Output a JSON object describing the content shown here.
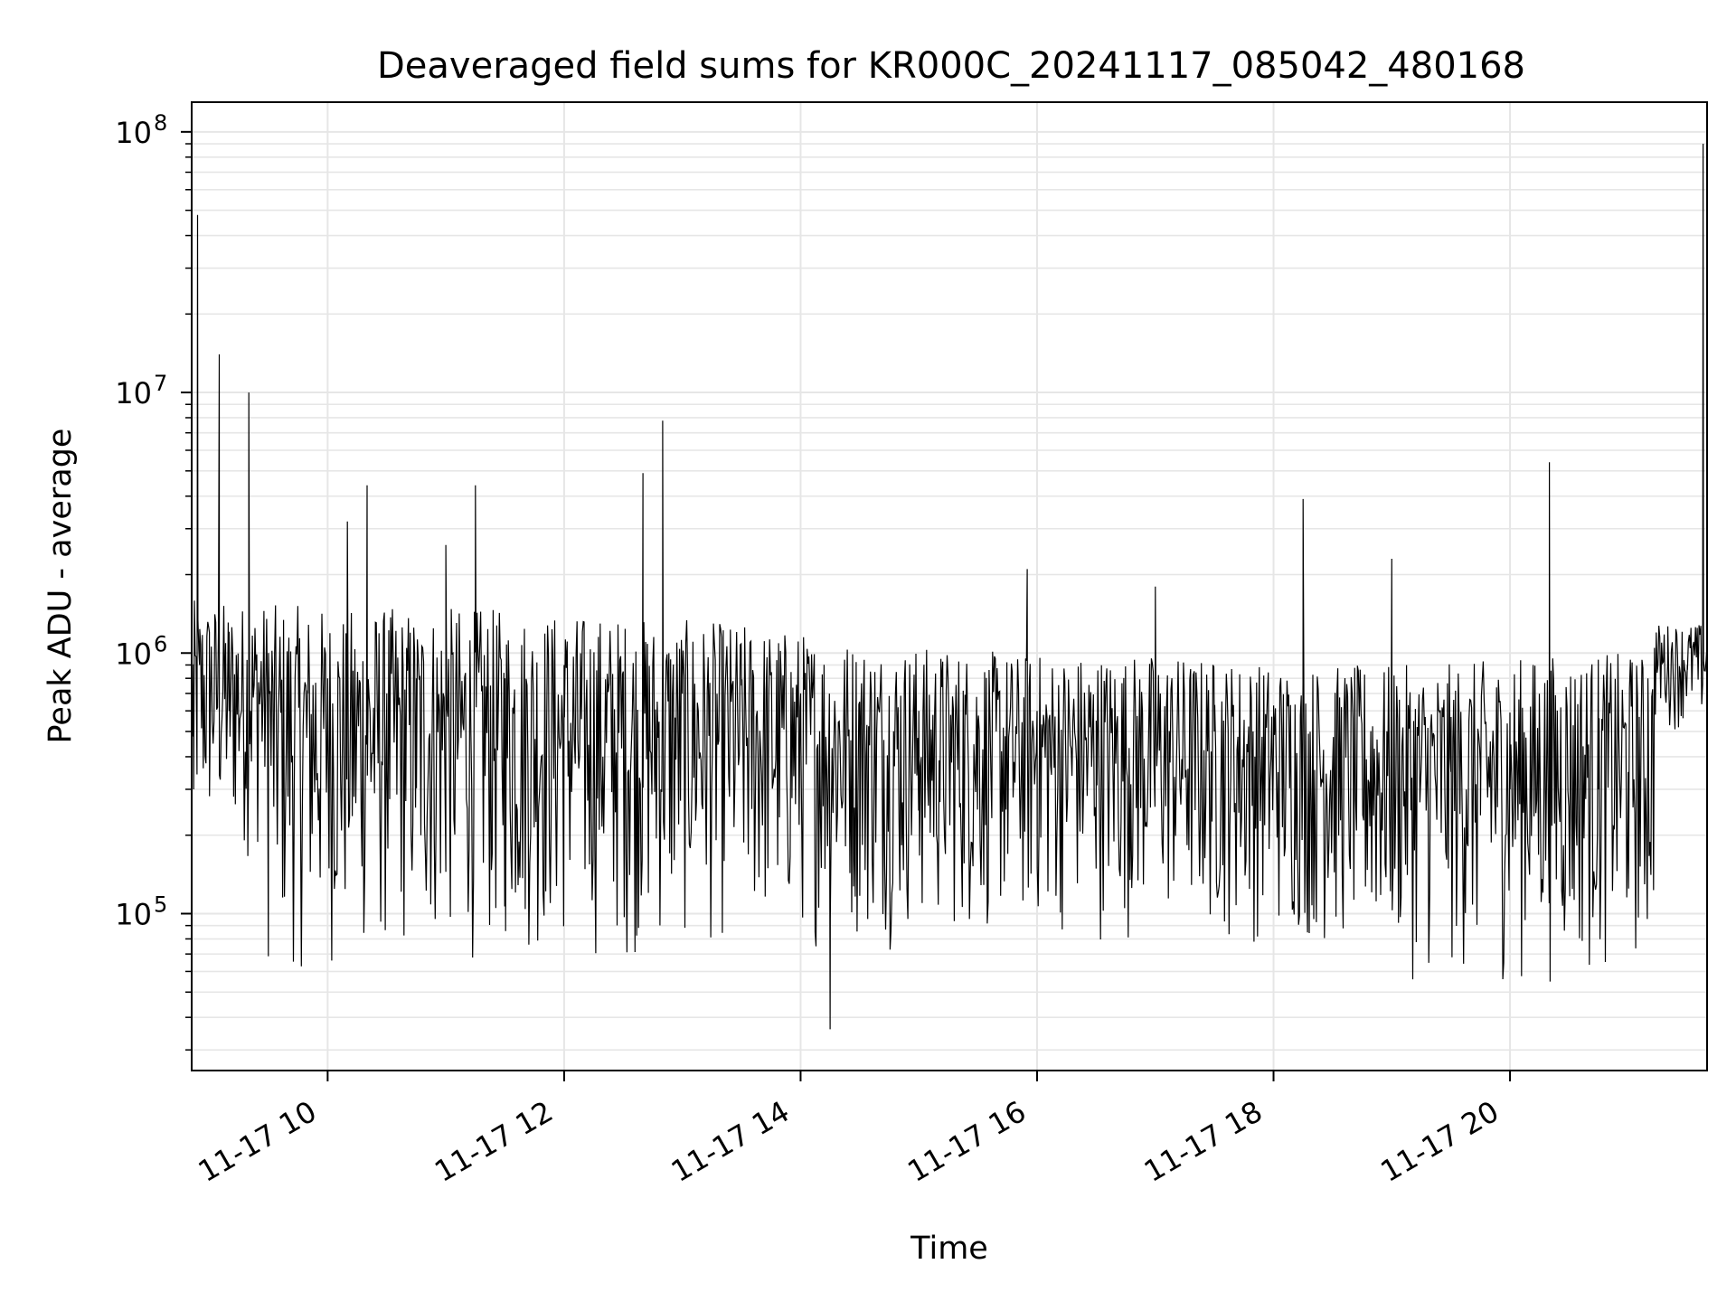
{
  "chart_data": {
    "type": "line",
    "title": "Deaveraged field sums for KR000C_20241117_085042_480168",
    "xlabel": "Time",
    "ylabel": "Peak ADU - average",
    "yscale": "log",
    "ylim": [
      25000,
      130000000
    ],
    "xlim": [
      "2024-11-17 08:51",
      "2024-11-17 21:40"
    ],
    "grid": true,
    "line_color": "#000000",
    "grid_color": "#e6e6e6",
    "x_ticks": [
      {
        "label": "11-17 10",
        "value": "2024-11-17 10:00"
      },
      {
        "label": "11-17 12",
        "value": "2024-11-17 12:00"
      },
      {
        "label": "11-17 14",
        "value": "2024-11-17 14:00"
      },
      {
        "label": "11-17 16",
        "value": "2024-11-17 16:00"
      },
      {
        "label": "11-17 18",
        "value": "2024-11-17 18:00"
      },
      {
        "label": "11-17 20",
        "value": "2024-11-17 20:00"
      }
    ],
    "y_ticks": [
      {
        "base": "10",
        "exp": "5",
        "value": 100000
      },
      {
        "base": "10",
        "exp": "6",
        "value": 1000000
      },
      {
        "base": "10",
        "exp": "7",
        "value": 10000000
      },
      {
        "base": "10",
        "exp": "8",
        "value": 100000000
      }
    ],
    "series": [
      {
        "x": [
          "2024-11-17 08:52",
          "2024-11-17 08:54",
          "2024-11-17 08:55",
          "2024-11-17 09:00",
          "2024-11-17 09:05",
          "2024-11-17 09:10",
          "2024-11-17 09:20",
          "2024-11-17 09:30",
          "2024-11-17 09:40",
          "2024-11-17 09:50",
          "2024-11-17 10:00",
          "2024-11-17 10:10",
          "2024-11-17 10:20",
          "2024-11-17 10:30",
          "2024-11-17 10:45",
          "2024-11-17 11:00",
          "2024-11-17 11:15",
          "2024-11-17 11:30",
          "2024-11-17 12:00",
          "2024-11-17 12:30",
          "2024-11-17 12:40",
          "2024-11-17 12:50",
          "2024-11-17 13:00",
          "2024-11-17 13:30",
          "2024-11-17 14:00",
          "2024-11-17 14:15",
          "2024-11-17 14:30",
          "2024-11-17 15:00",
          "2024-11-17 15:30",
          "2024-11-17 15:55",
          "2024-11-17 16:00",
          "2024-11-17 16:30",
          "2024-11-17 17:00",
          "2024-11-17 17:30",
          "2024-11-17 18:00",
          "2024-11-17 18:15",
          "2024-11-17 18:45",
          "2024-11-17 19:00",
          "2024-11-17 19:30",
          "2024-11-17 19:45",
          "2024-11-17 20:00",
          "2024-11-17 20:20",
          "2024-11-17 20:45",
          "2024-11-17 21:00",
          "2024-11-17 21:10",
          "2024-11-17 21:20",
          "2024-11-17 21:30",
          "2024-11-17 21:38"
        ],
        "y": [
          300000,
          48000000,
          900000,
          1200000,
          14000000,
          600000,
          10000000,
          1000000,
          800000,
          700000,
          800000,
          3200000,
          4400000,
          700000,
          800000,
          2600000,
          4400000,
          800000,
          900000,
          850000,
          4900000,
          7800000,
          800000,
          750000,
          700000,
          36000,
          650000,
          600000,
          550000,
          2100000,
          600000,
          550000,
          1800000,
          500000,
          450000,
          3900000,
          400000,
          2300000,
          350000,
          350000,
          300000,
          5400000,
          300000,
          350000,
          800000,
          900000,
          900000,
          90000000
        ]
      }
    ],
    "envelope_upper_approx": [
      1600000,
      1500000,
      1500000,
      1400000,
      1300000,
      1100000,
      1000000,
      1000000,
      900000,
      900000,
      1000000,
      1000000
    ],
    "envelope_lower_approx": [
      50000,
      55000,
      60000,
      60000,
      70000,
      70000,
      75000,
      75000,
      70000,
      50000,
      50000,
      60000
    ]
  }
}
